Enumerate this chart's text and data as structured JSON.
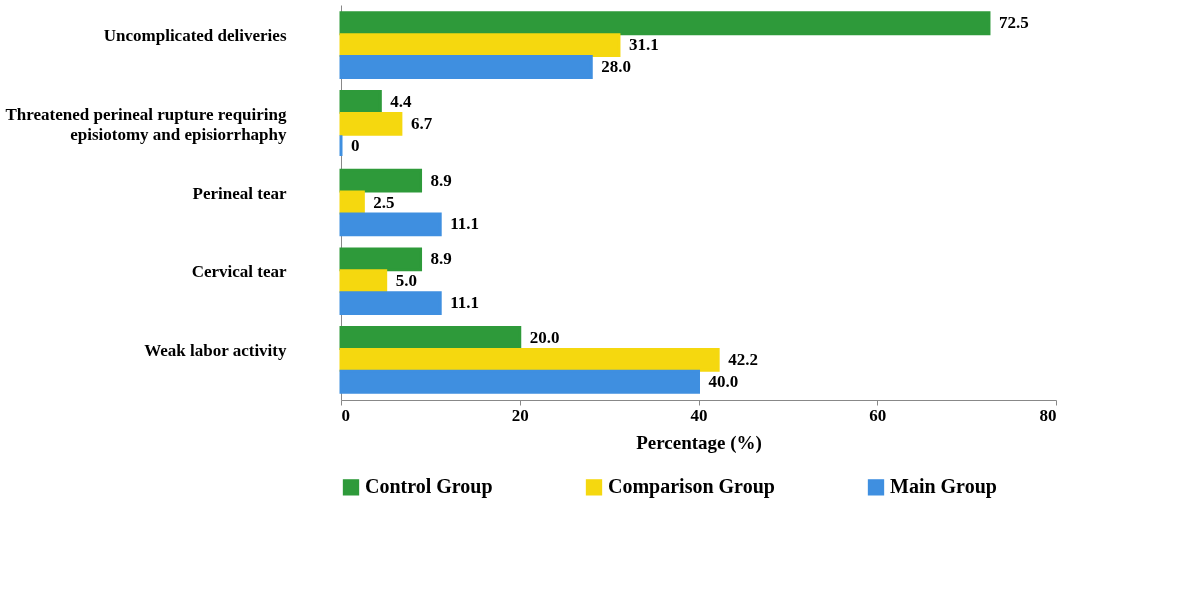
{
  "chart_data": {
    "type": "bar",
    "orientation": "horizontal",
    "xlabel": "Percentage (%)",
    "categories": [
      "Uncomplicated deliveries",
      "Threatened perineal rupture requiring episiotomy and episiorrhaphy",
      "Perineal tear",
      "Cervical tear",
      "Weak labor activity"
    ],
    "series": [
      {
        "name": "Control Group",
        "color": "#2e9a3a",
        "values": [
          72.5,
          4.4,
          8.9,
          8.9,
          20.0
        ],
        "value_labels": [
          "72.5",
          "4.4",
          "8.9",
          "8.9",
          "20.0"
        ]
      },
      {
        "name": "Comparison Group",
        "color": "#f5d80f",
        "values": [
          31.1,
          6.7,
          2.5,
          5.0,
          42.2
        ],
        "value_labels": [
          "31.1",
          "6.7",
          "2.5",
          "5.0",
          "42.2"
        ]
      },
      {
        "name": "Main Group",
        "color": "#3f8fe0",
        "values": [
          28.0,
          0,
          11.1,
          11.1,
          40.0
        ],
        "value_labels": [
          "28.0",
          "0",
          "11.1",
          "11.1",
          "40.0"
        ]
      }
    ],
    "xlim": [
      0,
      80
    ],
    "xticks": [
      0,
      20,
      40,
      60,
      80
    ],
    "grid": false,
    "legend": "bottom"
  }
}
